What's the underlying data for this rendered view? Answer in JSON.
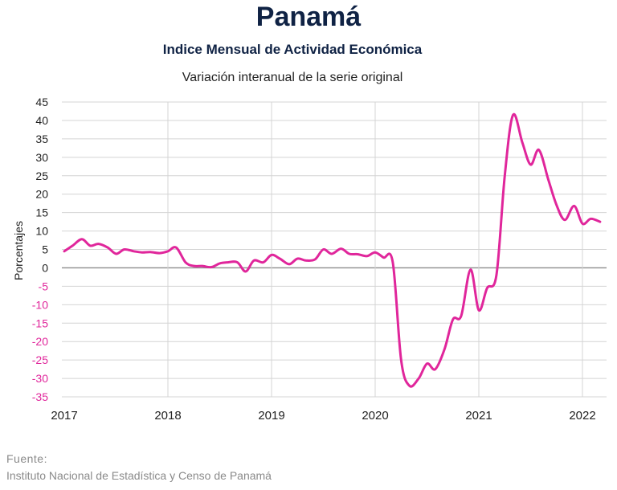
{
  "title": "Panamá",
  "subtitle": "Indice Mensual de  Actividad Económica",
  "subtitle2": "Variación interanual de la serie original",
  "source_label": "Fuente:",
  "source_text": "Instituto Nacional de Estadística y Censo de Panamá",
  "colors": {
    "series": "#e0269b",
    "negative_ticks": "#e0269b",
    "positive_ticks": "#222222",
    "grid": "#d4d4d4",
    "zero_line": "#8c8c8c"
  },
  "chart_data": {
    "type": "line",
    "title": "Panamá",
    "ylabel": "Porcentajes",
    "xlabel": "",
    "ylim": [
      -35,
      45
    ],
    "xlim": [
      2017,
      2022.25
    ],
    "yticks": [
      "45",
      "40",
      "35",
      "30",
      "25",
      "20",
      "15",
      "10",
      "5",
      "0",
      "-5",
      "-10",
      "-15",
      "-20",
      "-25",
      "-30",
      "-35"
    ],
    "xticks": [
      "2017",
      "2018",
      "2019",
      "2020",
      "2021",
      "2022"
    ],
    "grid": true,
    "legend": "none",
    "series": [
      {
        "x": [
          2017.0,
          2017.08,
          2017.17,
          2017.25,
          2017.33,
          2017.42,
          2017.5,
          2017.58,
          2017.67,
          2017.75,
          2017.83,
          2017.92,
          2018.0,
          2018.08,
          2018.17,
          2018.25,
          2018.33,
          2018.42,
          2018.5,
          2018.58,
          2018.67,
          2018.75,
          2018.83,
          2018.92,
          2019.0,
          2019.08,
          2019.17,
          2019.25,
          2019.33,
          2019.42,
          2019.5,
          2019.58,
          2019.67,
          2019.75,
          2019.83,
          2019.92,
          2020.0,
          2020.08,
          2020.17,
          2020.25,
          2020.33,
          2020.42,
          2020.5,
          2020.58,
          2020.67,
          2020.75,
          2020.83,
          2020.92,
          2021.0,
          2021.08,
          2021.17,
          2021.25,
          2021.33,
          2021.42,
          2021.5,
          2021.58,
          2021.67,
          2021.75,
          2021.83,
          2021.92,
          2022.0,
          2022.08,
          2022.17
        ],
        "values": [
          4.5,
          6.0,
          7.8,
          6.0,
          6.5,
          5.5,
          3.8,
          5.0,
          4.5,
          4.2,
          4.3,
          4.0,
          4.5,
          5.5,
          1.5,
          0.5,
          0.5,
          0.2,
          1.2,
          1.5,
          1.5,
          -1.0,
          2.0,
          1.5,
          3.5,
          2.5,
          1.0,
          2.5,
          2.0,
          2.3,
          5.0,
          3.8,
          5.2,
          3.8,
          3.7,
          3.2,
          4.2,
          2.8,
          1.5,
          -25.0,
          -32.0,
          -30.0,
          -26.0,
          -27.5,
          -22.0,
          -14.0,
          -13.0,
          -0.5,
          -11.5,
          -5.5,
          -2.0,
          25.0,
          41.5,
          34.0,
          28.0,
          32.0,
          24.0,
          17.0,
          13.0,
          16.8,
          12.0,
          13.3,
          12.5
        ]
      }
    ]
  }
}
